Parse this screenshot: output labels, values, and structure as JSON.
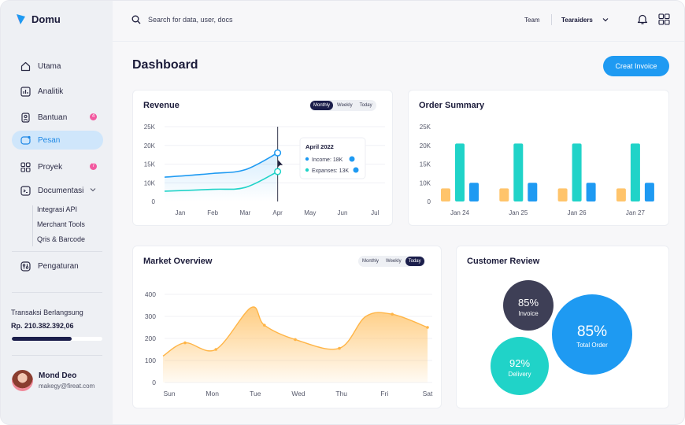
{
  "app": {
    "name": "Domu"
  },
  "sidebar": {
    "items": [
      {
        "label": "Utama",
        "icon": "home-icon"
      },
      {
        "label": "Analitik",
        "icon": "analytics-icon"
      },
      {
        "label": "Bantuan",
        "icon": "help-icon",
        "badge": "4"
      },
      {
        "label": "Pesan",
        "icon": "message-icon",
        "active": true
      },
      {
        "label": "Proyek",
        "icon": "project-icon",
        "badge": "7"
      },
      {
        "label": "Documentasi",
        "icon": "doc-icon",
        "expanded": true
      },
      {
        "label": "Pengaturan",
        "icon": "settings-icon"
      }
    ],
    "subitems": [
      "Integrasi API",
      "Merchant Tools",
      "Qris & Barcode"
    ],
    "transaction": {
      "label": "Transaksi Berlangsung",
      "value": "Rp. 210.382.392,06",
      "progress": 0.66
    },
    "user": {
      "name": "Mond Deo",
      "email": "makegy@fireat.com"
    }
  },
  "topbar": {
    "search_placeholder": "Search for data, user, docs",
    "team_label": "Team",
    "team_value": "Tearaiders"
  },
  "page": {
    "title": "Dashboard",
    "create_button": "Creat Invoice"
  },
  "colors": {
    "primary": "#1e9af2",
    "dark": "#1b1e4b",
    "teal": "#20d3c8",
    "orange": "#ffc46b",
    "pink": "#f25aa0"
  },
  "revenue": {
    "title": "Revenue",
    "filters": [
      "Monthly",
      "Weekly",
      "Today"
    ],
    "active_filter": "Monthly",
    "tooltip": {
      "title": "April 2022",
      "income": "Income: 18K",
      "expenses": "Expanses: 13K"
    }
  },
  "order_summary": {
    "title": "Order Summary"
  },
  "market": {
    "title": "Market Overview",
    "filters": [
      "Monthly",
      "Weekly",
      "Today"
    ],
    "active_filter": "Today"
  },
  "review": {
    "title": "Customer Review",
    "bubbles": [
      {
        "value": "85%",
        "label": "Invoice",
        "color": "#3e3f56"
      },
      {
        "value": "85%",
        "label": "Total Order",
        "color": "#1e9af2"
      },
      {
        "value": "92%",
        "label": "Delivery",
        "color": "#20d3c8"
      }
    ]
  },
  "chart_data": [
    {
      "type": "line",
      "title": "Revenue",
      "categories": [
        "Jan",
        "Feb",
        "Mar",
        "Apr",
        "May",
        "Jun",
        "Jul"
      ],
      "yticks": [
        "0",
        "10K",
        "15K",
        "20K",
        "25K"
      ],
      "ylim": [
        0,
        25000
      ],
      "series": [
        {
          "name": "Income",
          "color": "#1e9af2",
          "x": [
            "Jan",
            "Feb",
            "Mar",
            "Apr"
          ],
          "values": [
            11500,
            12500,
            13500,
            18000
          ]
        },
        {
          "name": "Expanses",
          "color": "#20d3c8",
          "x": [
            "Jan",
            "Feb",
            "Mar",
            "Apr"
          ],
          "values": [
            5500,
            6500,
            7500,
            13000
          ]
        }
      ]
    },
    {
      "type": "bar",
      "title": "Order Summary",
      "categories": [
        "Jan 24",
        "Jan 25",
        "Jan 26",
        "Jan 27"
      ],
      "yticks": [
        "0",
        "10K",
        "15K",
        "20K",
        "25K"
      ],
      "ylim": [
        0,
        25000
      ],
      "series": [
        {
          "color": "#ffc46b",
          "values": [
            7000,
            7000,
            7000,
            7000
          ]
        },
        {
          "color": "#20d3c8",
          "values": [
            20500,
            20500,
            20500,
            20500
          ]
        },
        {
          "color": "#1e9af2",
          "values": [
            10000,
            10000,
            10000,
            10000
          ]
        }
      ]
    },
    {
      "type": "area",
      "title": "Market Overview",
      "categories": [
        "Sun",
        "Mon",
        "Tue",
        "Wed",
        "Thu",
        "Fri",
        "Sat"
      ],
      "yticks": [
        "0",
        "100",
        "200",
        "300",
        "400"
      ],
      "ylim": [
        0,
        400
      ],
      "color": "#ffc46b",
      "x": [
        0,
        0.5,
        1.2,
        2,
        2.3,
        3,
        4,
        4.6,
        5.2,
        6
      ],
      "values": [
        120,
        180,
        150,
        340,
        260,
        195,
        155,
        300,
        310,
        250
      ]
    }
  ]
}
